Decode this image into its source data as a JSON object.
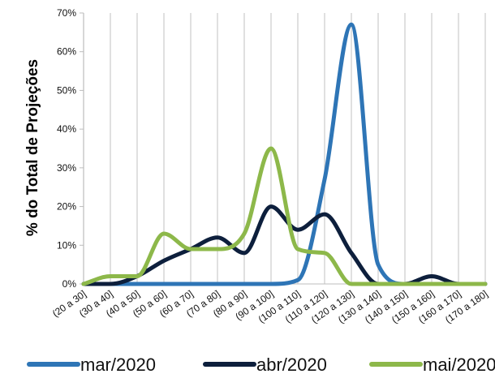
{
  "chart_data": {
    "type": "line",
    "ylabel": "% do Total de Projeções",
    "xlabel": "",
    "title": "",
    "categories": [
      "(20 a 30]",
      "(30 a 40]",
      "(40 a 50]",
      "(50 a 60]",
      "(60 a 70]",
      "(70 a 80]",
      "(80 a 90]",
      "(90 a 100]",
      "(100 a 110]",
      "(110 a 120]",
      "(120 a 130]",
      "(130 a 140]",
      "(140 a 150]",
      "(150 a 160]",
      "(160 a 170]",
      "(170 a 180]"
    ],
    "y_ticks": [
      "0%",
      "10%",
      "20%",
      "30%",
      "40%",
      "50%",
      "60%",
      "70%"
    ],
    "ylim": [
      0,
      70
    ],
    "grid": "vertical",
    "legend_position": "bottom",
    "series": [
      {
        "name": "mar/2020",
        "color": "#2E75B6",
        "values": [
          0,
          0,
          0,
          0,
          0,
          0,
          0,
          0,
          1,
          27,
          67,
          5,
          0,
          0,
          0,
          0
        ]
      },
      {
        "name": "abr/2020",
        "color": "#0D1F3C",
        "values": [
          0,
          0,
          2,
          6,
          9,
          12,
          8,
          20,
          14,
          18,
          8,
          0,
          0,
          2,
          0,
          0
        ]
      },
      {
        "name": "mai/2020",
        "color": "#8DB84A",
        "values": [
          0,
          2,
          2,
          13,
          9,
          9,
          13,
          35,
          9,
          8,
          0,
          0,
          0,
          0,
          0,
          0
        ]
      }
    ]
  }
}
